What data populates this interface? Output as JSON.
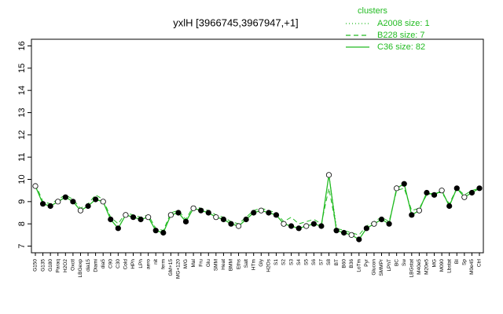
{
  "chart_data": {
    "type": "line",
    "title": "yxlH [3966745,3967947,+1]",
    "legend_title": "clusters",
    "legend_position": "top-right",
    "categories": [
      "G150",
      "G135",
      "G180",
      "Paraq",
      "H2O2",
      "Oxctl",
      "LBGexp",
      "dia15",
      "Diami",
      "dia5",
      "C90",
      "C30",
      "Cold",
      "HPh",
      "LPh",
      "aero",
      "nit",
      "ferm",
      "GM+15",
      "MG+120",
      "M/G",
      "Mal",
      "Fru",
      "Glu",
      "SMM",
      "Heat",
      "BMM",
      "Eths",
      "Salt",
      "HTm",
      "Gly",
      "H2Os",
      "S1",
      "S2",
      "S3",
      "S4",
      "S5",
      "S6",
      "S7",
      "S8",
      "BT",
      "B60",
      "B36",
      "LoTm",
      "Pyr",
      "Glucon",
      "SMMPr",
      "LPhT",
      "BC",
      "Sw",
      "LBGstat",
      "M40e5",
      "M20e5",
      "MG",
      "M090",
      "Lbstat",
      "BI",
      "Sp",
      "M0e45",
      "Ctrl"
    ],
    "series": [
      {
        "name": "A2008 size: 1",
        "color": "#22bb22",
        "dash": "dotted",
        "values": [
          null,
          null,
          null,
          null,
          null,
          null,
          null,
          null,
          null,
          null,
          null,
          null,
          null,
          null,
          null,
          null,
          null,
          null,
          null,
          null,
          null,
          null,
          null,
          null,
          null,
          null,
          null,
          null,
          null,
          null,
          null,
          null,
          null,
          null,
          null,
          null,
          null,
          null,
          null,
          10.2,
          7.9,
          null,
          null,
          null,
          null,
          null,
          null,
          null,
          null,
          null,
          null,
          null,
          null,
          null,
          null,
          null,
          null,
          null,
          null,
          null
        ]
      },
      {
        "name": "B228 size: 7",
        "color": "#22bb22",
        "dash": "dashed",
        "values": [
          9.8,
          9.0,
          8.9,
          9.1,
          9.3,
          9.1,
          8.7,
          8.9,
          9.3,
          9.1,
          8.3,
          8.0,
          8.5,
          8.4,
          8.3,
          8.4,
          7.8,
          7.7,
          8.5,
          8.6,
          8.2,
          8.8,
          8.7,
          8.6,
          8.4,
          8.3,
          8.1,
          8.0,
          8.3,
          8.6,
          8.7,
          8.6,
          8.5,
          8.1,
          8.3,
          8.0,
          8.1,
          8.2,
          8.0,
          9.6,
          7.8,
          7.7,
          7.6,
          7.5,
          7.9,
          8.1,
          8.3,
          8.1,
          9.5,
          9.6,
          8.6,
          8.7,
          9.3,
          9.4,
          9.4,
          8.9,
          9.6,
          9.3,
          9.5,
          9.6
        ]
      },
      {
        "name": "C36 size: 82",
        "color": "#22bb22",
        "dash": "solid",
        "values": [
          9.7,
          8.9,
          8.8,
          9.0,
          9.2,
          9.0,
          8.6,
          8.8,
          9.1,
          9.0,
          8.2,
          7.8,
          8.4,
          8.3,
          8.2,
          8.3,
          7.7,
          7.6,
          8.4,
          8.5,
          8.1,
          8.7,
          8.6,
          8.5,
          8.3,
          8.2,
          8.0,
          7.9,
          8.2,
          8.5,
          8.6,
          8.5,
          8.4,
          8.0,
          7.9,
          7.8,
          7.9,
          8.0,
          7.9,
          10.2,
          7.7,
          7.6,
          7.5,
          7.3,
          7.8,
          8.0,
          8.2,
          8.0,
          9.6,
          9.8,
          8.4,
          8.6,
          9.4,
          9.3,
          9.5,
          8.8,
          9.6,
          9.2,
          9.4,
          9.6
        ]
      }
    ],
    "ylim": [
      6.7,
      16.3
    ],
    "yticks": [
      7,
      8,
      9,
      10,
      11,
      12,
      13,
      14,
      15,
      16
    ]
  }
}
